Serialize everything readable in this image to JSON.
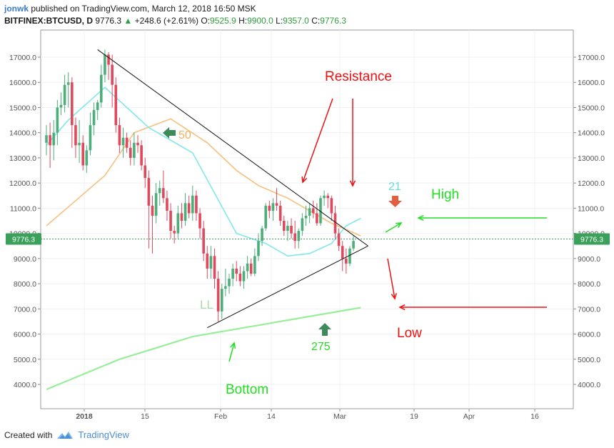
{
  "header": {
    "author": "jonwk",
    "published": "published on TradingView.com, March 12, 2018 16:50 MSK",
    "symbol": "BITFINEX:BTCUSD, D",
    "last": "9776.3",
    "change": "+248.6 (+2.61%)",
    "o_label": "O:",
    "o": "9525.9",
    "h_label": "H:",
    "h": "9900.0",
    "l_label": "L:",
    "l": "9357.0",
    "c_label": "C:",
    "c": "9776.3"
  },
  "footer": {
    "created_with": "Created with",
    "brand": "TradingView"
  },
  "colors": {
    "up": "#4caf7a",
    "down": "#e0485c",
    "ma21": "#80e8ea",
    "ma50": "#f7c07f",
    "ma275": "#99ee99",
    "price_line": "#3aa05a",
    "annot_red": "#ee1111",
    "annot_green": "#22dd22",
    "annot_cyan": "#66dddd",
    "annot_orange": "#f0b35c",
    "annot_ll": "#a8dca8"
  },
  "chart_data": {
    "type": "candlestick",
    "x_ticks": [
      "2018",
      "15",
      "Feb",
      "14",
      "Mar",
      "19",
      "Apr",
      "16"
    ],
    "y_ticks": [
      "4000.0",
      "5000.0",
      "6000.0",
      "7000.0",
      "8000.0",
      "9000.0",
      "10000.0",
      "11000.0",
      "12000.0",
      "13000.0",
      "14000.0",
      "15000.0",
      "16000.0",
      "17000.0"
    ],
    "ylim": [
      3300,
      18000
    ],
    "start_date": "2017-12-28",
    "last_price": "9776.3",
    "candles": [
      [
        13600,
        14300,
        13100,
        13900
      ],
      [
        13900,
        14400,
        12600,
        13500
      ],
      [
        13500,
        14500,
        12900,
        14000
      ],
      [
        14000,
        15300,
        13500,
        15000
      ],
      [
        15000,
        15600,
        14700,
        15100
      ],
      [
        15100,
        16300,
        14800,
        15900
      ],
      [
        15900,
        16400,
        15000,
        16000
      ],
      [
        16000,
        16200,
        13400,
        14300
      ],
      [
        14300,
        14600,
        13000,
        13500
      ],
      [
        13500,
        14500,
        12800,
        13600
      ],
      [
        13600,
        13900,
        12500,
        12700
      ],
      [
        12700,
        13500,
        12400,
        13300
      ],
      [
        13300,
        14800,
        13100,
        14300
      ],
      [
        14300,
        15200,
        13900,
        14900
      ],
      [
        14900,
        15300,
        14500,
        15200
      ],
      [
        15200,
        16700,
        15000,
        16300
      ],
      [
        16300,
        17300,
        16000,
        17100
      ],
      [
        17100,
        17200,
        16100,
        16700
      ],
      [
        16700,
        17100,
        15000,
        15900
      ],
      [
        15900,
        16200,
        14000,
        14300
      ],
      [
        14300,
        14600,
        13200,
        13500
      ],
      [
        13500,
        14200,
        13000,
        13800
      ],
      [
        13800,
        14000,
        13200,
        13400
      ],
      [
        13400,
        13700,
        12700,
        13000
      ],
      [
        13000,
        14000,
        12700,
        13600
      ],
      [
        13600,
        13900,
        13200,
        13500
      ],
      [
        13500,
        13700,
        12500,
        12700
      ],
      [
        12700,
        13000,
        11800,
        12200
      ],
      [
        12200,
        12500,
        9400,
        11100
      ],
      [
        11100,
        11500,
        9200,
        10700
      ],
      [
        10700,
        12000,
        10400,
        11600
      ],
      [
        11600,
        12100,
        11100,
        11800
      ],
      [
        11800,
        12500,
        11200,
        11400
      ],
      [
        11400,
        11700,
        10500,
        10900
      ],
      [
        10900,
        11200,
        9800,
        10100
      ],
      [
        10100,
        10300,
        9600,
        10000
      ],
      [
        10000,
        11100,
        9800,
        10800
      ],
      [
        10800,
        11200,
        10200,
        10500
      ],
      [
        10500,
        11600,
        10300,
        11200
      ],
      [
        11200,
        11500,
        10600,
        10800
      ],
      [
        10800,
        11900,
        10500,
        11500
      ],
      [
        11500,
        11700,
        10500,
        10800
      ],
      [
        10800,
        11000,
        9800,
        10200
      ],
      [
        10200,
        10500,
        8900,
        9200
      ],
      [
        9200,
        9500,
        8200,
        8600
      ],
      [
        8600,
        9500,
        8200,
        9100
      ],
      [
        9100,
        9400,
        7800,
        8200
      ],
      [
        8200,
        8500,
        6500,
        6900
      ],
      [
        6900,
        8000,
        6600,
        7800
      ],
      [
        7800,
        8600,
        7500,
        7900
      ],
      [
        7900,
        8400,
        7600,
        8200
      ],
      [
        8200,
        8800,
        7900,
        8600
      ],
      [
        8600,
        8900,
        8100,
        8400
      ],
      [
        8400,
        8700,
        7900,
        8100
      ],
      [
        8100,
        8700,
        7800,
        8500
      ],
      [
        8500,
        9100,
        8200,
        8800
      ],
      [
        8800,
        9000,
        8300,
        8400
      ],
      [
        8400,
        9400,
        8300,
        9100
      ],
      [
        9100,
        10000,
        8900,
        9700
      ],
      [
        9700,
        10300,
        9500,
        10200
      ],
      [
        10200,
        11200,
        10100,
        11100
      ],
      [
        11100,
        11300,
        10600,
        10900
      ],
      [
        10900,
        11400,
        10500,
        11200
      ],
      [
        11200,
        11800,
        10900,
        11100
      ],
      [
        11100,
        11300,
        10300,
        10500
      ],
      [
        10500,
        10700,
        9900,
        10100
      ],
      [
        10100,
        10500,
        9700,
        10300
      ],
      [
        10300,
        10600,
        9800,
        10000
      ],
      [
        10000,
        10500,
        9400,
        9700
      ],
      [
        9700,
        10200,
        9400,
        10100
      ],
      [
        10100,
        10800,
        9900,
        10600
      ],
      [
        10600,
        11100,
        10300,
        10700
      ],
      [
        10700,
        11200,
        10400,
        11000
      ],
      [
        11000,
        11300,
        10600,
        10800
      ],
      [
        10800,
        11200,
        10300,
        10400
      ],
      [
        10400,
        11500,
        10300,
        11400
      ],
      [
        11400,
        11700,
        11100,
        11500
      ],
      [
        11500,
        11600,
        11000,
        11400
      ],
      [
        11400,
        11500,
        10500,
        10800
      ],
      [
        10800,
        11100,
        9800,
        10000
      ],
      [
        10000,
        10200,
        9300,
        9500
      ],
      [
        9500,
        9700,
        8500,
        9000
      ],
      [
        9000,
        9400,
        8400,
        8800
      ],
      [
        8800,
        9500,
        8700,
        9400
      ],
      [
        9400,
        9900,
        9300,
        9700
      ]
    ],
    "ma_21": [
      [
        0,
        13500
      ],
      [
        6,
        14500
      ],
      [
        16,
        15800
      ],
      [
        28,
        14200
      ],
      [
        40,
        13200
      ],
      [
        52,
        10000
      ],
      [
        60,
        9600
      ],
      [
        66,
        9100
      ],
      [
        72,
        9200
      ],
      [
        78,
        9600
      ],
      [
        82,
        10300
      ],
      [
        86,
        10600
      ]
    ],
    "ma_50": [
      [
        0,
        10300
      ],
      [
        8,
        11300
      ],
      [
        16,
        12300
      ],
      [
        24,
        14000
      ],
      [
        34,
        14550
      ],
      [
        44,
        13600
      ],
      [
        52,
        12500
      ],
      [
        58,
        11900
      ],
      [
        66,
        11400
      ],
      [
        72,
        10900
      ],
      [
        78,
        10400
      ],
      [
        86,
        9900
      ]
    ],
    "ma_275": [
      [
        0,
        3800
      ],
      [
        20,
        5000
      ],
      [
        40,
        5900
      ],
      [
        60,
        6400
      ],
      [
        86,
        7050
      ]
    ],
    "trendlines": [
      {
        "name": "resistance-trendline",
        "from": [
          14,
          17300
        ],
        "to": [
          88,
          9500
        ]
      },
      {
        "name": "support-trendline",
        "from": [
          44,
          6250
        ],
        "to": [
          88,
          9500
        ]
      }
    ],
    "annotations": {
      "resistance": "Resistance",
      "high": "High",
      "low": "Low",
      "bottom": "Bottom",
      "ll": "LL",
      "ma50_label": "50",
      "ma21_label": "21",
      "ma275_label": "275"
    }
  }
}
